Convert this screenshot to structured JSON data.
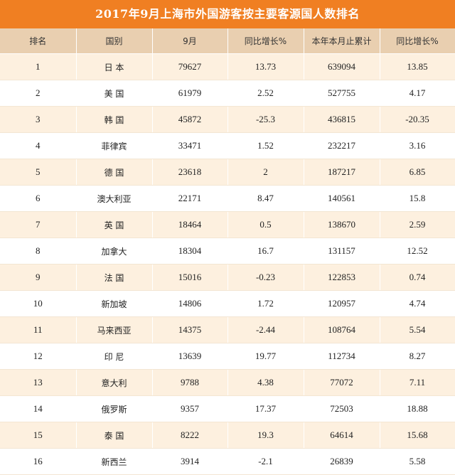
{
  "title": "2017年9月上海市外国游客按主要客源国人数排名",
  "columns": [
    "排名",
    "国别",
    "9月",
    "同比增长%",
    "本年本月止累计",
    "同比增长%"
  ],
  "rows": [
    {
      "rank": "1",
      "country": "日 本",
      "sep": "79627",
      "sep_yoy": "13.73",
      "ytd": "639094",
      "ytd_yoy": "13.85"
    },
    {
      "rank": "2",
      "country": "美 国",
      "sep": "61979",
      "sep_yoy": "2.52",
      "ytd": "527755",
      "ytd_yoy": "4.17"
    },
    {
      "rank": "3",
      "country": "韩 国",
      "sep": "45872",
      "sep_yoy": "-25.3",
      "ytd": "436815",
      "ytd_yoy": "-20.35"
    },
    {
      "rank": "4",
      "country": "菲律宾",
      "sep": "33471",
      "sep_yoy": "1.52",
      "ytd": "232217",
      "ytd_yoy": "3.16"
    },
    {
      "rank": "5",
      "country": "德 国",
      "sep": "23618",
      "sep_yoy": "2",
      "ytd": "187217",
      "ytd_yoy": "6.85"
    },
    {
      "rank": "6",
      "country": "澳大利亚",
      "sep": "22171",
      "sep_yoy": "8.47",
      "ytd": "140561",
      "ytd_yoy": "15.8"
    },
    {
      "rank": "7",
      "country": "英 国",
      "sep": "18464",
      "sep_yoy": "0.5",
      "ytd": "138670",
      "ytd_yoy": "2.59"
    },
    {
      "rank": "8",
      "country": "加拿大",
      "sep": "18304",
      "sep_yoy": "16.7",
      "ytd": "131157",
      "ytd_yoy": "12.52"
    },
    {
      "rank": "9",
      "country": "法 国",
      "sep": "15016",
      "sep_yoy": "-0.23",
      "ytd": "122853",
      "ytd_yoy": "0.74"
    },
    {
      "rank": "10",
      "country": "新加坡",
      "sep": "14806",
      "sep_yoy": "1.72",
      "ytd": "120957",
      "ytd_yoy": "4.74"
    },
    {
      "rank": "11",
      "country": "马来西亚",
      "sep": "14375",
      "sep_yoy": "-2.44",
      "ytd": "108764",
      "ytd_yoy": "5.54"
    },
    {
      "rank": "12",
      "country": "印 尼",
      "sep": "13639",
      "sep_yoy": "19.77",
      "ytd": "112734",
      "ytd_yoy": "8.27"
    },
    {
      "rank": "13",
      "country": "意大利",
      "sep": "9788",
      "sep_yoy": "4.38",
      "ytd": "77072",
      "ytd_yoy": "7.11"
    },
    {
      "rank": "14",
      "country": "俄罗斯",
      "sep": "9357",
      "sep_yoy": "17.37",
      "ytd": "72503",
      "ytd_yoy": "18.88"
    },
    {
      "rank": "15",
      "country": "泰 国",
      "sep": "8222",
      "sep_yoy": "19.3",
      "ytd": "64614",
      "ytd_yoy": "15.68"
    },
    {
      "rank": "16",
      "country": "新西兰",
      "sep": "3914",
      "sep_yoy": "-2.1",
      "ytd": "26839",
      "ytd_yoy": "5.58"
    }
  ],
  "colors": {
    "title_bg": "#f07f22",
    "header_bg": "#e9cfb0",
    "row_odd": "#fdf0df",
    "row_even": "#ffffff"
  }
}
